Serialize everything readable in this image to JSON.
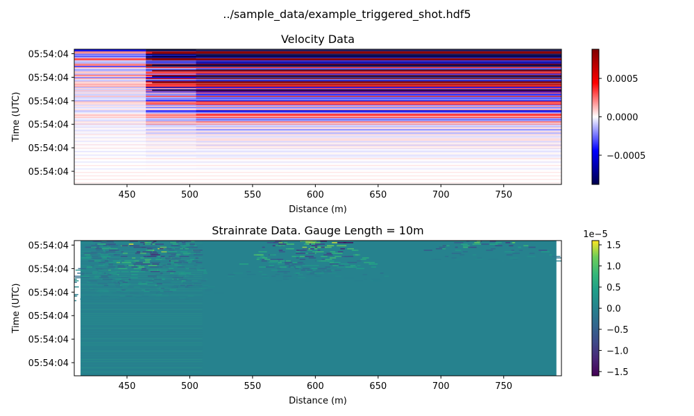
{
  "figure": {
    "suptitle": "../sample_data/example_triggered_shot.hdf5"
  },
  "chart_data": [
    {
      "type": "heatmap",
      "title": "Velocity Data",
      "xlabel": "Distance (m)",
      "ylabel": "Time (UTC)",
      "xlim": [
        408,
        796
      ],
      "x_ticks": [
        450,
        500,
        550,
        600,
        650,
        700,
        750
      ],
      "x_tick_labels": [
        "450",
        "500",
        "550",
        "600",
        "650",
        "700",
        "750"
      ],
      "y_tick_labels": [
        "05:54:04",
        "05:54:04",
        "05:54:04",
        "05:54:04",
        "05:54:04",
        "05:54:04"
      ],
      "colormap": "seismic",
      "colorbar": {
        "vmin": -0.00088,
        "vmax": 0.00088,
        "ticks": [
          -0.0005,
          0,
          0.0005
        ],
        "tick_labels": [
          "−0.0005",
          "0.0000",
          "0.0005"
        ],
        "offset_text": ""
      },
      "data_extent": [
        408,
        796
      ],
      "grid": false
    },
    {
      "type": "heatmap",
      "title": "Strainrate Data. Gauge Length = 10m",
      "xlabel": "Distance (m)",
      "ylabel": "Time (UTC)",
      "xlim": [
        408,
        796
      ],
      "x_ticks": [
        450,
        500,
        550,
        600,
        650,
        700,
        750
      ],
      "x_tick_labels": [
        "450",
        "500",
        "550",
        "600",
        "650",
        "700",
        "750"
      ],
      "y_tick_labels": [
        "05:54:04",
        "05:54:04",
        "05:54:04",
        "05:54:04",
        "05:54:04",
        "05:54:04"
      ],
      "colormap": "viridis",
      "colorbar": {
        "vmin": -1.6,
        "vmax": 1.6,
        "ticks": [
          -1.5,
          -1.0,
          -0.5,
          0.0,
          0.5,
          1.0,
          1.5
        ],
        "tick_labels": [
          "−1.5",
          "−1.0",
          "−0.5",
          "0.0",
          "0.5",
          "1.0",
          "1.5"
        ],
        "offset_text": "1e−5"
      },
      "data_extent": [
        413,
        792
      ],
      "grid": false
    }
  ]
}
